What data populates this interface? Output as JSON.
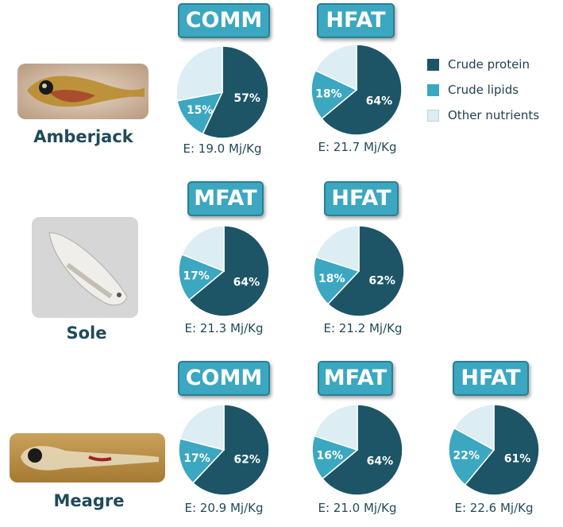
{
  "colors": {
    "protein": "#1d5566",
    "lipids": "#3ba7c0",
    "other": "#dcedf3",
    "tag_bg": "#3ba7c0",
    "text": "#1f4a5a"
  },
  "legend": [
    {
      "label": "Crude protein",
      "key": "protein"
    },
    {
      "label": "Crude lipids",
      "key": "lipids"
    },
    {
      "label": "Other nutrients",
      "key": "other"
    }
  ],
  "species": [
    {
      "name": "Amberjack"
    },
    {
      "name": "Sole"
    },
    {
      "name": "Meagre"
    }
  ],
  "chart_data": [
    {
      "type": "pie",
      "species": "Amberjack",
      "diet": "COMM",
      "energy": "E: 19.0 Mj/Kg",
      "slices": [
        {
          "name": "Crude protein",
          "value": 57,
          "label": "57%"
        },
        {
          "name": "Crude lipids",
          "value": 15,
          "label": "15%"
        },
        {
          "name": "Other nutrients",
          "value": 28,
          "label": ""
        }
      ]
    },
    {
      "type": "pie",
      "species": "Amberjack",
      "diet": "HFAT",
      "energy": "E: 21.7 Mj/Kg",
      "slices": [
        {
          "name": "Crude protein",
          "value": 64,
          "label": "64%"
        },
        {
          "name": "Crude lipids",
          "value": 18,
          "label": "18%"
        },
        {
          "name": "Other nutrients",
          "value": 18,
          "label": ""
        }
      ]
    },
    {
      "type": "pie",
      "species": "Sole",
      "diet": "MFAT",
      "energy": "E: 21.3 Mj/Kg",
      "slices": [
        {
          "name": "Crude protein",
          "value": 64,
          "label": "64%"
        },
        {
          "name": "Crude lipids",
          "value": 17,
          "label": "17%"
        },
        {
          "name": "Other nutrients",
          "value": 19,
          "label": ""
        }
      ]
    },
    {
      "type": "pie",
      "species": "Sole",
      "diet": "HFAT",
      "energy": "E: 21.2 Mj/Kg",
      "slices": [
        {
          "name": "Crude protein",
          "value": 62,
          "label": "62%"
        },
        {
          "name": "Crude lipids",
          "value": 18,
          "label": "18%"
        },
        {
          "name": "Other nutrients",
          "value": 20,
          "label": ""
        }
      ]
    },
    {
      "type": "pie",
      "species": "Meagre",
      "diet": "COMM",
      "energy": "E: 20.9 Mj/Kg",
      "slices": [
        {
          "name": "Crude protein",
          "value": 62,
          "label": "62%"
        },
        {
          "name": "Crude lipids",
          "value": 17,
          "label": "17%"
        },
        {
          "name": "Other nutrients",
          "value": 21,
          "label": ""
        }
      ]
    },
    {
      "type": "pie",
      "species": "Meagre",
      "diet": "MFAT",
      "energy": "E: 21.0 Mj/Kg",
      "slices": [
        {
          "name": "Crude protein",
          "value": 64,
          "label": "64%"
        },
        {
          "name": "Crude lipids",
          "value": 16,
          "label": "16%"
        },
        {
          "name": "Other nutrients",
          "value": 20,
          "label": ""
        }
      ]
    },
    {
      "type": "pie",
      "species": "Meagre",
      "diet": "HFAT",
      "energy": "E: 22.6 Mj/Kg",
      "slices": [
        {
          "name": "Crude protein",
          "value": 61,
          "label": "61%"
        },
        {
          "name": "Crude lipids",
          "value": 22,
          "label": "22%"
        },
        {
          "name": "Other nutrients",
          "value": 17,
          "label": ""
        }
      ]
    }
  ]
}
